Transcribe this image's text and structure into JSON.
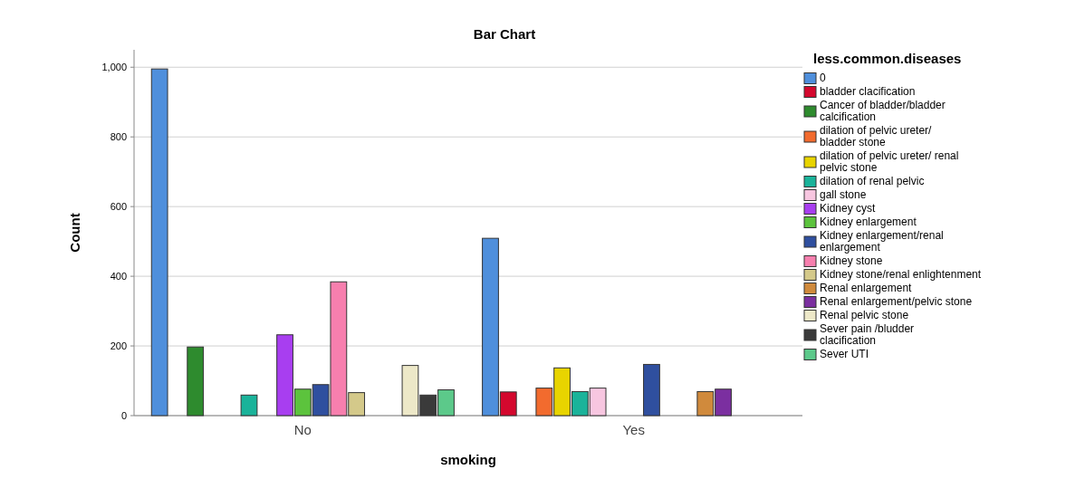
{
  "chart_data": {
    "type": "bar",
    "title": "Bar Chart",
    "xlabel": "smoking",
    "ylabel": "Count",
    "legend_title": "less.common.diseases",
    "categories": [
      "No",
      "Yes"
    ],
    "ylim": [
      0,
      1050
    ],
    "yticks": [
      0,
      200,
      400,
      600,
      800,
      {
        "value": 1000,
        "label": "1,000"
      }
    ],
    "grid": "y",
    "legend": "right",
    "series": [
      {
        "name": "0",
        "color": "#4f8fdc",
        "values": [
          995,
          509
        ]
      },
      {
        "name": "bladder clacification",
        "color": "#d4082e",
        "values": [
          null,
          68
        ]
      },
      {
        "name": "Cancer of bladder/bladder calcification",
        "color": "#2e8b2e",
        "values": [
          197,
          null
        ]
      },
      {
        "name": "dilation of pelvic ureter/ bladder stone",
        "color": "#f26b2e",
        "values": [
          null,
          79
        ]
      },
      {
        "name": "dilation of pelvic ureter/ renal pelvic stone",
        "color": "#e8d400",
        "values": [
          null,
          137
        ]
      },
      {
        "name": "dilation of renal pelvic",
        "color": "#1ab39a",
        "values": [
          59,
          69
        ]
      },
      {
        "name": "gall stone",
        "color": "#f7c6e0",
        "values": [
          null,
          79
        ]
      },
      {
        "name": "Kidney cyst",
        "color": "#a83ef0",
        "values": [
          232,
          null
        ]
      },
      {
        "name": "Kidney enlargement",
        "color": "#5cc33d",
        "values": [
          76,
          null
        ]
      },
      {
        "name": "Kidney enlargement/renal enlargement",
        "color": "#2f4f9f",
        "values": [
          89,
          147
        ]
      },
      {
        "name": "Kidney stone",
        "color": "#f77fae",
        "values": [
          384,
          null
        ]
      },
      {
        "name": "Kidney stone/renal enlightenment",
        "color": "#d4c98a",
        "values": [
          66,
          null
        ]
      },
      {
        "name": "Renal enlargement",
        "color": "#d08a3c",
        "values": [
          null,
          69
        ]
      },
      {
        "name": "Renal enlargement/pelvic stone",
        "color": "#7b2fa0",
        "values": [
          null,
          76
        ]
      },
      {
        "name": "Renal pelvic stone",
        "color": "#ede8c8",
        "values": [
          144,
          null
        ]
      },
      {
        "name": "Sever pain /bludder clacification",
        "color": "#3a3a3a",
        "values": [
          59,
          null
        ]
      },
      {
        "name": "Sever UTI",
        "color": "#5cc98a",
        "values": [
          74,
          null
        ]
      }
    ]
  }
}
